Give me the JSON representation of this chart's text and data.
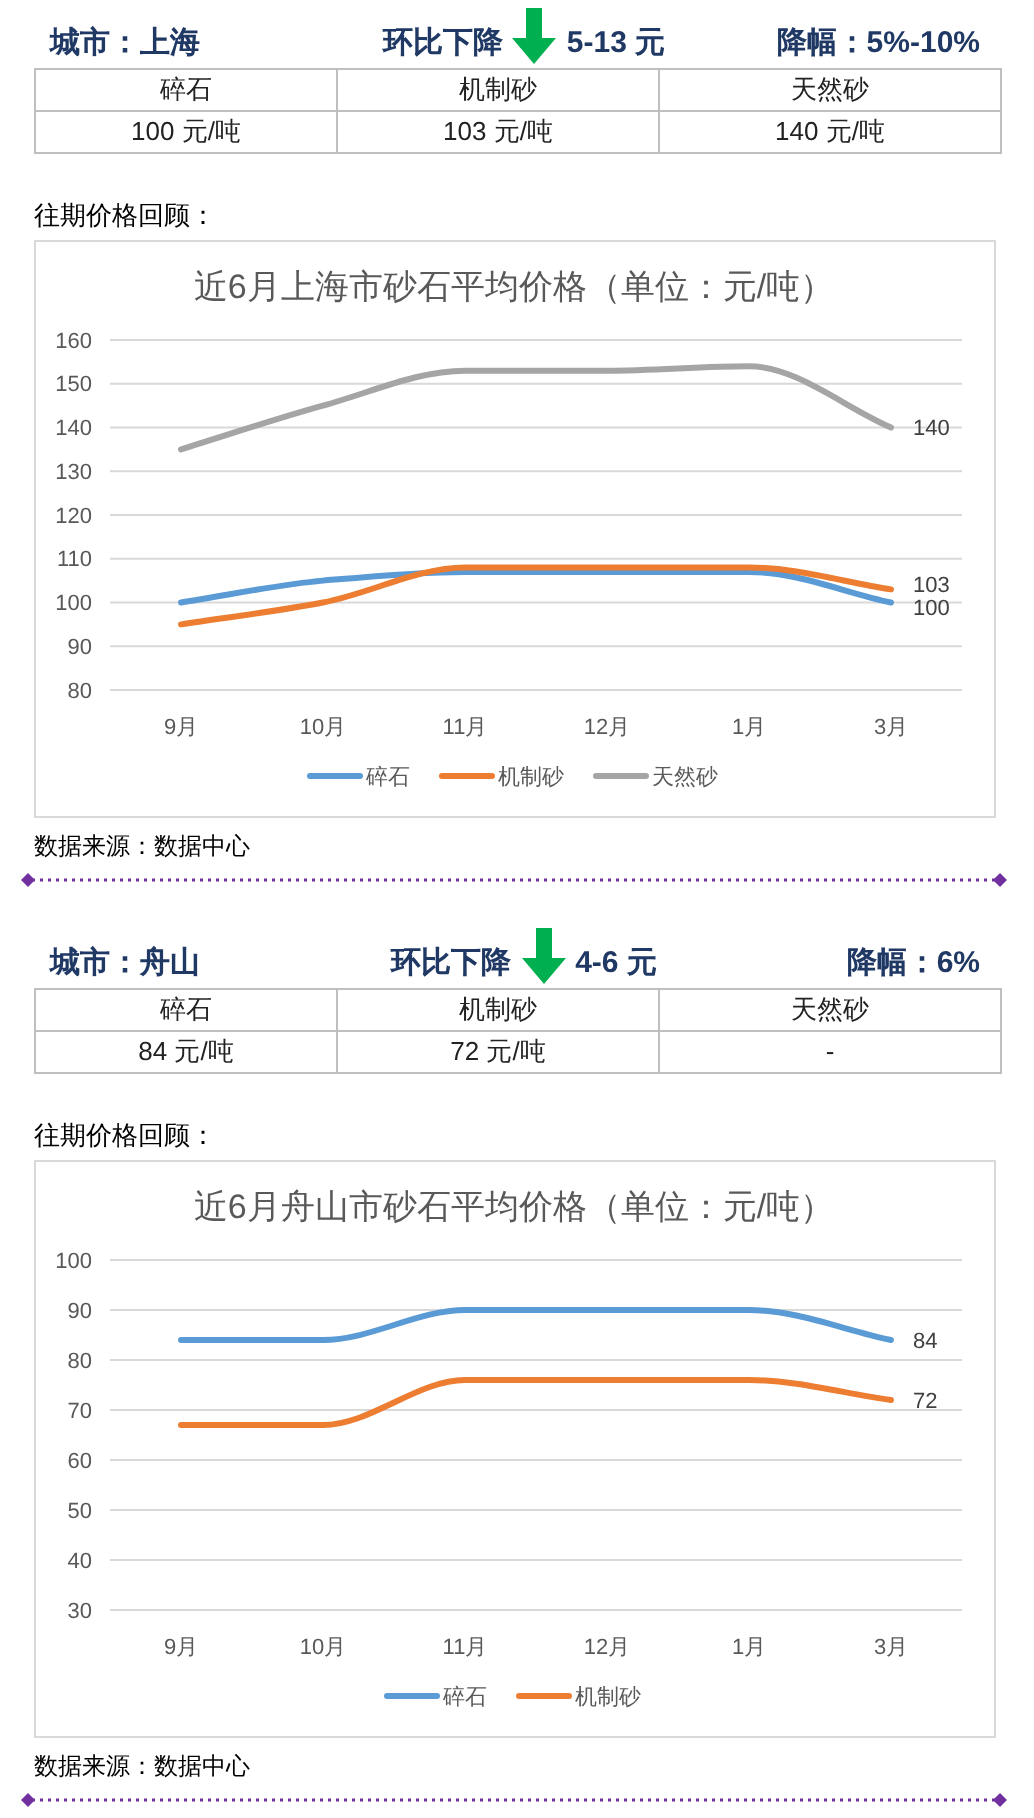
{
  "chart_data": [
    {
      "type": "other",
      "title": "城市：上海",
      "annotations": [
        "环比下降",
        "5-13 元",
        "降幅：5%-10%"
      ],
      "categories": [
        "碎石",
        "机制砂",
        "天然砂"
      ],
      "value_labels": [
        "100 元/吨",
        "103 元/吨",
        "140 元/吨"
      ]
    },
    {
      "type": "line",
      "title": "近6月上海市砂石平均价格（单位：元/吨）",
      "annotations": [
        "往期价格回顾：",
        "数据来源：数据中心"
      ],
      "categories": [
        "9月",
        "10月",
        "11月",
        "12月",
        "1月",
        "3月"
      ],
      "series": [
        {
          "name": "碎石",
          "color": "#5b9bd5",
          "values": [
            100,
            105,
            107,
            107,
            107,
            100
          ],
          "value_labels": [
            null,
            null,
            null,
            null,
            null,
            "100"
          ]
        },
        {
          "name": "机制砂",
          "color": "#ed7d31",
          "values": [
            95,
            100,
            108,
            108,
            108,
            103
          ],
          "value_labels": [
            null,
            null,
            null,
            null,
            null,
            "103"
          ]
        },
        {
          "name": "天然砂",
          "color": "#a5a5a5",
          "values": [
            135,
            145,
            153,
            153,
            154,
            140
          ],
          "value_labels": [
            null,
            null,
            null,
            null,
            null,
            "140"
          ]
        }
      ],
      "ylim": [
        80,
        160
      ],
      "yticks": [
        80,
        90,
        100,
        110,
        120,
        130,
        140,
        150,
        160
      ],
      "grid": "y",
      "legend": "bottom"
    },
    {
      "type": "other",
      "title": "城市：舟山",
      "annotations": [
        "环比下降",
        "4-6 元",
        "降幅：6%"
      ],
      "categories": [
        "碎石",
        "机制砂",
        "天然砂"
      ],
      "value_labels": [
        "84 元/吨",
        "72 元/吨",
        "-"
      ]
    },
    {
      "type": "line",
      "title": "近6月舟山市砂石平均价格（单位：元/吨）",
      "annotations": [
        "往期价格回顾：",
        "数据来源：数据中心"
      ],
      "categories": [
        "9月",
        "10月",
        "11月",
        "12月",
        "1月",
        "3月"
      ],
      "series": [
        {
          "name": "碎石",
          "color": "#5b9bd5",
          "values": [
            84,
            84,
            90,
            90,
            90,
            84
          ],
          "value_labels": [
            null,
            null,
            null,
            null,
            null,
            "84"
          ]
        },
        {
          "name": "机制砂",
          "color": "#ed7d31",
          "values": [
            67,
            67,
            76,
            76,
            76,
            72
          ],
          "value_labels": [
            null,
            null,
            null,
            null,
            null,
            "72"
          ]
        }
      ],
      "ylim": [
        30,
        100
      ],
      "yticks": [
        30,
        40,
        50,
        60,
        70,
        80,
        90,
        100
      ],
      "grid": "y",
      "legend": "bottom"
    }
  ]
}
